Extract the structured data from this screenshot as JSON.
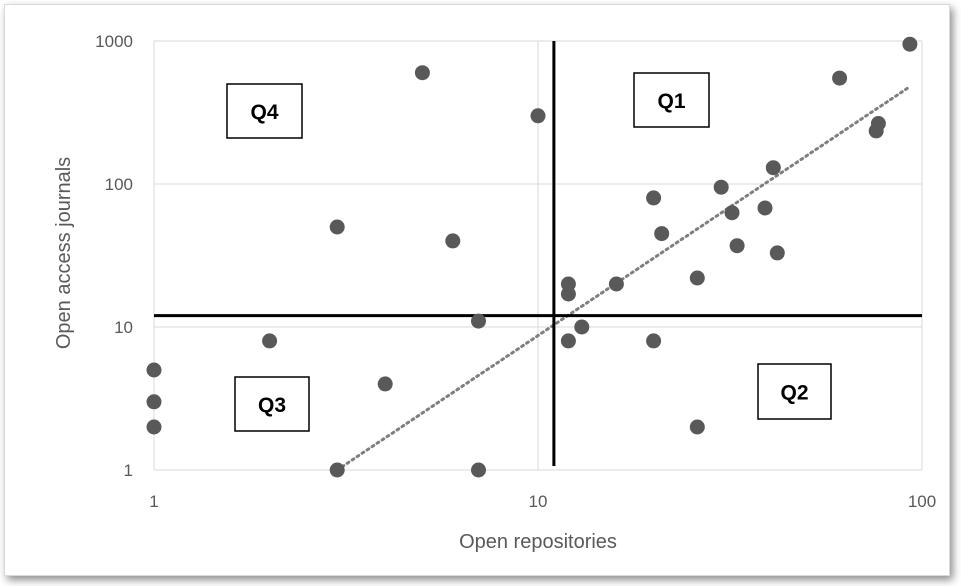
{
  "chart_data": {
    "type": "scatter",
    "xlabel": "Open repositories",
    "ylabel": "Open access journals",
    "xscale": "log",
    "yscale": "log",
    "xlim": [
      1,
      100
    ],
    "ylim": [
      1,
      1000
    ],
    "x_ticks": [
      "1",
      "10",
      "100"
    ],
    "y_ticks": [
      "1",
      "10",
      "100",
      "1000"
    ],
    "grid": true,
    "point_color": "#595959",
    "trendline": {
      "style": "dotted",
      "color": "#7f7f7f",
      "kind": "power",
      "from": [
        3,
        1
      ],
      "to": [
        93,
        480
      ]
    },
    "quadrant_dividers": {
      "x": 11,
      "y": 12
    },
    "quadrant_labels": [
      "Q1",
      "Q2",
      "Q3",
      "Q4"
    ],
    "points": [
      {
        "x": 1,
        "y": 5
      },
      {
        "x": 1,
        "y": 3
      },
      {
        "x": 1,
        "y": 2
      },
      {
        "x": 2,
        "y": 8
      },
      {
        "x": 3,
        "y": 1
      },
      {
        "x": 3,
        "y": 50
      },
      {
        "x": 4,
        "y": 4
      },
      {
        "x": 5,
        "y": 600
      },
      {
        "x": 6,
        "y": 40
      },
      {
        "x": 7,
        "y": 11
      },
      {
        "x": 7,
        "y": 1
      },
      {
        "x": 10,
        "y": 300
      },
      {
        "x": 12,
        "y": 20
      },
      {
        "x": 12,
        "y": 17
      },
      {
        "x": 12,
        "y": 8
      },
      {
        "x": 13,
        "y": 10
      },
      {
        "x": 16,
        "y": 20
      },
      {
        "x": 20,
        "y": 80
      },
      {
        "x": 20,
        "y": 8
      },
      {
        "x": 21,
        "y": 45
      },
      {
        "x": 26,
        "y": 22
      },
      {
        "x": 26,
        "y": 2
      },
      {
        "x": 30,
        "y": 95
      },
      {
        "x": 32,
        "y": 63
      },
      {
        "x": 33,
        "y": 37
      },
      {
        "x": 39,
        "y": 68
      },
      {
        "x": 41,
        "y": 130
      },
      {
        "x": 42,
        "y": 33
      },
      {
        "x": 61,
        "y": 550
      },
      {
        "x": 76,
        "y": 235
      },
      {
        "x": 77,
        "y": 265
      },
      {
        "x": 93,
        "y": 950
      }
    ]
  }
}
